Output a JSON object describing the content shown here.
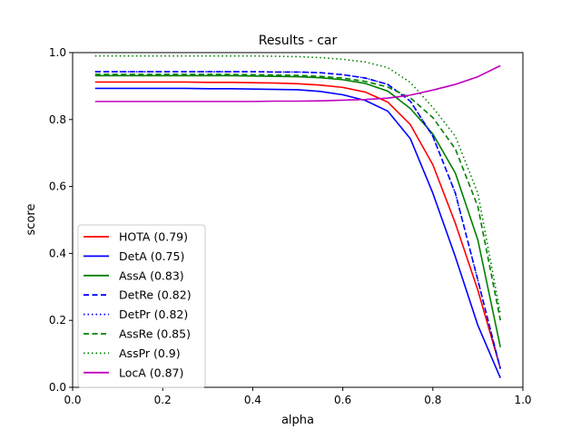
{
  "chart_data": {
    "type": "line",
    "title": "Results - car",
    "xlabel": "alpha",
    "ylabel": "score",
    "xlim": [
      0.0,
      1.0
    ],
    "ylim": [
      0.0,
      1.0
    ],
    "xticks": [
      "0.0",
      "0.2",
      "0.4",
      "0.6",
      "0.8",
      "1.0"
    ],
    "yticks": [
      "0.0",
      "0.2",
      "0.4",
      "0.6",
      "0.8",
      "1.0"
    ],
    "grid": false,
    "legend_position": "lower-left",
    "x": [
      0.05,
      0.1,
      0.15,
      0.2,
      0.25,
      0.3,
      0.35,
      0.4,
      0.45,
      0.5,
      0.55,
      0.6,
      0.65,
      0.7,
      0.75,
      0.8,
      0.85,
      0.9,
      0.95
    ],
    "series": [
      {
        "name": "HOTA (0.79)",
        "color": "#ff0000",
        "dash": "solid",
        "values": [
          0.912,
          0.912,
          0.912,
          0.912,
          0.912,
          0.911,
          0.911,
          0.91,
          0.909,
          0.907,
          0.903,
          0.896,
          0.882,
          0.852,
          0.785,
          0.665,
          0.49,
          0.29,
          0.057
        ]
      },
      {
        "name": "DetA (0.75)",
        "color": "#0000ff",
        "dash": "solid",
        "values": [
          0.893,
          0.893,
          0.893,
          0.893,
          0.893,
          0.892,
          0.892,
          0.891,
          0.89,
          0.889,
          0.884,
          0.874,
          0.857,
          0.825,
          0.743,
          0.58,
          0.39,
          0.185,
          0.028
        ]
      },
      {
        "name": "AssA (0.83)",
        "color": "#008000",
        "dash": "solid",
        "values": [
          0.931,
          0.931,
          0.931,
          0.931,
          0.931,
          0.931,
          0.931,
          0.93,
          0.929,
          0.928,
          0.925,
          0.919,
          0.908,
          0.885,
          0.833,
          0.757,
          0.64,
          0.44,
          0.12
        ]
      },
      {
        "name": "DetRe (0.82)",
        "color": "#0000ff",
        "dash": "dashed",
        "values": [
          0.943,
          0.943,
          0.943,
          0.943,
          0.943,
          0.943,
          0.943,
          0.943,
          0.942,
          0.942,
          0.94,
          0.934,
          0.924,
          0.905,
          0.855,
          0.75,
          0.58,
          0.32,
          0.055
        ]
      },
      {
        "name": "DetPr (0.82)",
        "color": "#0000ff",
        "dash": "dotted",
        "values": [
          0.943,
          0.943,
          0.943,
          0.943,
          0.943,
          0.943,
          0.943,
          0.943,
          0.942,
          0.942,
          0.94,
          0.934,
          0.924,
          0.905,
          0.855,
          0.75,
          0.58,
          0.32,
          0.055
        ]
      },
      {
        "name": "AssRe (0.85)",
        "color": "#008000",
        "dash": "dashed",
        "values": [
          0.935,
          0.935,
          0.935,
          0.935,
          0.935,
          0.935,
          0.935,
          0.934,
          0.933,
          0.932,
          0.929,
          0.924,
          0.914,
          0.897,
          0.865,
          0.806,
          0.712,
          0.54,
          0.2
        ]
      },
      {
        "name": "AssPr (0.9)",
        "color": "#008000",
        "dash": "dotted",
        "values": [
          0.99,
          0.99,
          0.99,
          0.99,
          0.99,
          0.99,
          0.99,
          0.99,
          0.989,
          0.988,
          0.985,
          0.98,
          0.972,
          0.955,
          0.911,
          0.836,
          0.75,
          0.58,
          0.22
        ]
      },
      {
        "name": "LocA (0.87)",
        "color": "#bf00bf",
        "dash": "solid",
        "values": [
          0.854,
          0.854,
          0.854,
          0.854,
          0.854,
          0.854,
          0.854,
          0.854,
          0.855,
          0.855,
          0.856,
          0.858,
          0.86,
          0.864,
          0.873,
          0.888,
          0.905,
          0.928,
          0.961
        ]
      }
    ]
  }
}
